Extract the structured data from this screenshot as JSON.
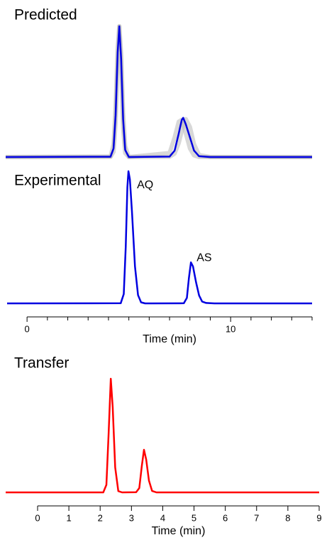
{
  "chart_data": [
    {
      "type": "line",
      "title": "Predicted",
      "x": [
        -1.05,
        4.1,
        4.25,
        4.35,
        4.45,
        4.53,
        4.62,
        4.72,
        4.82,
        5.0,
        7.0,
        7.25,
        7.45,
        7.6,
        7.67,
        7.8,
        8.0,
        8.2,
        8.45,
        9.0,
        14.0
      ],
      "series": [
        {
          "color": "#b8b8b8",
          "values": [
            0,
            0.004,
            0.098,
            0.38,
            0.83,
            1,
            0.79,
            0.34,
            0.083,
            0,
            0.031,
            0.15,
            0.27,
            0.285,
            0.26,
            0.18,
            0.065,
            0.013,
            0,
            0,
            0
          ]
        },
        {
          "color": "#b8b8b8",
          "values": [
            0,
            0.001,
            0.039,
            0.26,
            0.77,
            1,
            0.72,
            0.22,
            0.03,
            0,
            0.002,
            0.026,
            0.106,
            0.2,
            0.245,
            0.29,
            0.23,
            0.1,
            0.015,
            0,
            0
          ]
        },
        {
          "color": "#0000e0",
          "values": [
            0,
            0.002,
            0.066,
            0.32,
            0.8,
            1,
            0.75,
            0.29,
            0.054,
            0,
            0.003,
            0.049,
            0.18,
            0.285,
            0.3,
            0.25,
            0.15,
            0.05,
            0.006,
            0,
            0
          ]
        }
      ],
      "xlim": [
        -1.05,
        14.0
      ],
      "ylim": [
        0,
        1.0
      ]
    },
    {
      "type": "line",
      "title": "Experimental",
      "xlabel": "Time (min)",
      "x": [
        -0.98,
        4.6,
        4.75,
        4.85,
        4.93,
        4.98,
        5.05,
        5.15,
        5.3,
        5.45,
        5.6,
        5.8,
        6.1,
        7.7,
        7.85,
        7.95,
        8.05,
        8.15,
        8.3,
        8.45,
        8.6,
        8.8,
        9.2,
        14.0
      ],
      "series": [
        {
          "color": "#0000e0",
          "values": [
            0,
            0.001,
            0.071,
            0.43,
            0.88,
            1,
            0.94,
            0.7,
            0.28,
            0.063,
            0.008,
            0,
            0,
            0.001,
            0.042,
            0.19,
            0.31,
            0.28,
            0.16,
            0.06,
            0.014,
            0.003,
            0,
            0
          ]
        }
      ],
      "annotations": [
        "AQ",
        "AS"
      ],
      "xlim": [
        -0.98,
        14.0
      ],
      "ylim": [
        0,
        1.0
      ],
      "xticks": [
        0,
        10
      ],
      "xminorticks": [
        1,
        2,
        3,
        4,
        5,
        6,
        7,
        8,
        9,
        11,
        12,
        13,
        14
      ]
    },
    {
      "type": "line",
      "title": "Transfer",
      "xlabel": "Time (min)",
      "x": [
        -1.02,
        2.1,
        2.2,
        2.27,
        2.34,
        2.4,
        2.48,
        2.58,
        2.7,
        3.15,
        3.25,
        3.33,
        3.4,
        3.47,
        3.56,
        3.66,
        3.8,
        4.0,
        9.0
      ],
      "series": [
        {
          "color": "#ff0000",
          "values": [
            0,
            0,
            0.066,
            0.51,
            1,
            0.75,
            0.22,
            0.011,
            0,
            0.001,
            0.038,
            0.23,
            0.375,
            0.29,
            0.104,
            0.013,
            0,
            0,
            0
          ]
        }
      ],
      "xlim": [
        -1.02,
        9.0
      ],
      "ylim": [
        0,
        1.0
      ],
      "xticks": [
        0,
        1,
        2,
        3,
        4,
        5,
        6,
        7,
        8,
        9
      ]
    }
  ]
}
